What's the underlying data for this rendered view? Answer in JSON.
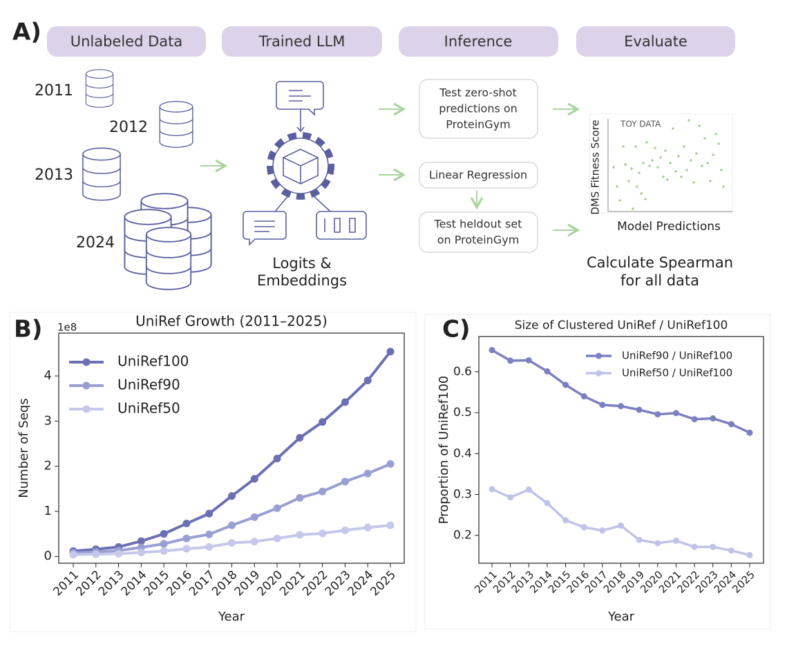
{
  "panel_a": {
    "label": "A)",
    "stages": [
      "Unlabeled Data",
      "Trained LLM",
      "Inference",
      "Evaluate"
    ],
    "years": [
      "2011",
      "2012",
      "2013",
      "2024"
    ],
    "llm_output": [
      "Logits &",
      "Embeddings"
    ],
    "inference": {
      "zero_shot": [
        "Test zero-shot",
        "predictions on",
        "ProteinGym"
      ],
      "regression": "Linear Regression",
      "heldout": [
        "Test heldout set",
        "on ProteinGym"
      ]
    },
    "evaluate": {
      "toy_label": "TOY DATA",
      "ylabel": "DMS Fitness Score",
      "xlabel": "Model Predictions",
      "caption": [
        "Calculate Spearman",
        "for all data"
      ]
    }
  },
  "chart_data": [
    {
      "type": "line",
      "panel": "B)",
      "title": "UniRef Growth (2011–2025)",
      "y_offset_label": "1e8",
      "xlabel": "Year",
      "ylabel": "Number of Seqs",
      "categories": [
        "2011",
        "2012",
        "2013",
        "2014",
        "2015",
        "2016",
        "2017",
        "2018",
        "2019",
        "2020",
        "2021",
        "2022",
        "2023",
        "2024",
        "2025"
      ],
      "series": [
        {
          "name": "UniRef100",
          "color": "#6b70b3",
          "values": [
            0.12,
            0.16,
            0.21,
            0.34,
            0.5,
            0.73,
            0.95,
            1.34,
            1.72,
            2.17,
            2.63,
            2.98,
            3.42,
            3.9,
            4.54
          ]
        },
        {
          "name": "UniRef90",
          "color": "#9a9fd2",
          "values": [
            0.08,
            0.1,
            0.13,
            0.2,
            0.28,
            0.4,
            0.49,
            0.69,
            0.87,
            1.07,
            1.3,
            1.44,
            1.66,
            1.84,
            2.05
          ]
        },
        {
          "name": "UniRef50",
          "color": "#c5c8ea",
          "values": [
            0.04,
            0.05,
            0.06,
            0.09,
            0.12,
            0.17,
            0.21,
            0.3,
            0.33,
            0.4,
            0.48,
            0.51,
            0.58,
            0.64,
            0.69
          ]
        }
      ],
      "ylim": [
        -0.15,
        4.95
      ],
      "yticks": [
        0,
        1,
        2,
        3,
        4
      ],
      "legend": "upper left",
      "grid": false
    },
    {
      "type": "line",
      "panel": "C)",
      "title": "Size of Clustered UniRef / UniRef100",
      "xlabel": "Year",
      "ylabel": "Proportion of UniRef100",
      "categories": [
        "2011",
        "2012",
        "2013",
        "2014",
        "2015",
        "2016",
        "2017",
        "2018",
        "2019",
        "2020",
        "2021",
        "2022",
        "2023",
        "2024",
        "2025"
      ],
      "series": [
        {
          "name": "UniRef90 / UniRef100",
          "color": "#7b80c0",
          "values": [
            0.653,
            0.627,
            0.628,
            0.601,
            0.568,
            0.54,
            0.519,
            0.516,
            0.507,
            0.496,
            0.499,
            0.484,
            0.486,
            0.472,
            0.451
          ]
        },
        {
          "name": "UniRef50 / UniRef100",
          "color": "#c0c3e8",
          "values": [
            0.313,
            0.293,
            0.312,
            0.279,
            0.237,
            0.22,
            0.212,
            0.224,
            0.189,
            0.181,
            0.187,
            0.172,
            0.172,
            0.163,
            0.152
          ]
        }
      ],
      "ylim": [
        0.132,
        0.686
      ],
      "yticks": [
        0.2,
        0.3,
        0.4,
        0.5,
        0.6
      ],
      "legend": "upper right",
      "grid": false
    }
  ]
}
